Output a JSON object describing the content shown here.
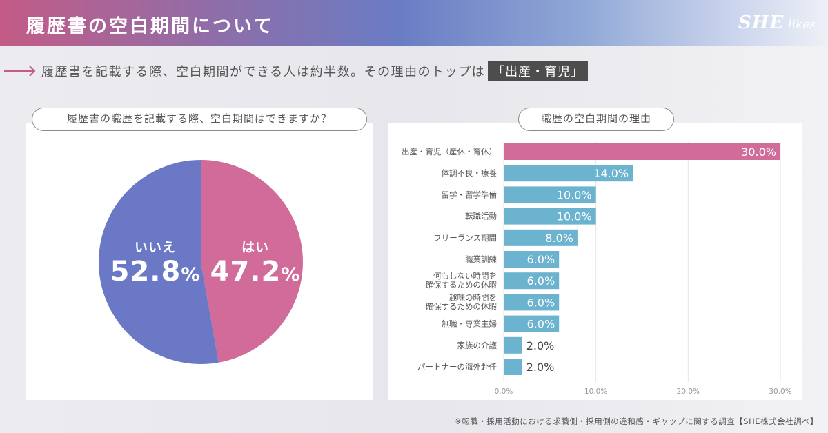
{
  "header": {
    "title": "履歴書の空白期間について",
    "logo_she": "SHE",
    "logo_likes": "likes"
  },
  "subtitle": {
    "text": "履歴書を記載する際、空白期間ができる人は約半数。その理由のトップは",
    "highlight": "「出産・育児」"
  },
  "left_question": "履歴書の職歴を記載する際、空白期間はできますか？",
  "right_question": "職歴の空白期間の理由",
  "footnote": "※転職・採用活動における求職側・採用側の違和感・ギャップに関する調査【SHE株式会社調べ】",
  "colors": {
    "pie_no": "#6b78c6",
    "pie_yes": "#d06b9a",
    "bar_top": "#d06b9a",
    "bar": "#6bb3cf"
  },
  "chart_data": [
    {
      "type": "pie",
      "title": "履歴書の職歴を記載する際、空白期間はできますか？",
      "slices": [
        {
          "label": "いいえ",
          "value": 52.8,
          "display_num": "52.8",
          "unit": "%"
        },
        {
          "label": "はい",
          "value": 47.2,
          "display_num": "47.2",
          "unit": "%"
        }
      ]
    },
    {
      "type": "bar",
      "orientation": "horizontal",
      "title": "職歴の空白期間の理由",
      "categories": [
        [
          "出産・育児（産休・育休）"
        ],
        [
          "体調不良・療養"
        ],
        [
          "留学・留学準備"
        ],
        [
          "転職活動"
        ],
        [
          "フリーランス期間"
        ],
        [
          "職業訓練"
        ],
        [
          "何もしない時間を",
          "確保するための休暇"
        ],
        [
          "趣味の時間を",
          "確保するための休暇"
        ],
        [
          "無職・専業主婦"
        ],
        [
          "家族の介護"
        ],
        [
          "パートナーの海外赴任"
        ]
      ],
      "values": [
        30.0,
        14.0,
        10.0,
        10.0,
        8.0,
        6.0,
        6.0,
        6.0,
        6.0,
        2.0,
        2.0
      ],
      "value_labels": [
        "30.0%",
        "14.0%",
        "10.0%",
        "10.0%",
        "8.0%",
        "6.0%",
        "6.0%",
        "6.0%",
        "6.0%",
        "2.0%",
        "2.0%"
      ],
      "xlim": [
        0,
        30
      ],
      "xticks": [
        "0.0%",
        "10.0%",
        "20.0%",
        "30.0%"
      ],
      "grid": true
    }
  ]
}
